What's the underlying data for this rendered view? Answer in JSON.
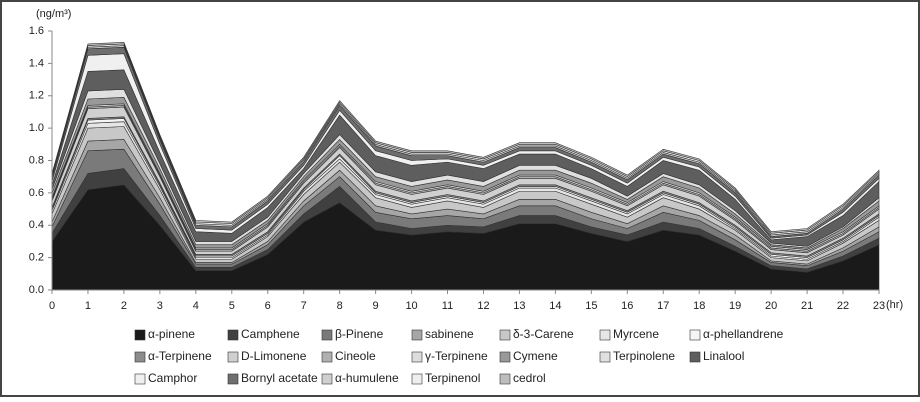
{
  "chart_data": {
    "type": "stacked-area",
    "y_axis_label": "(ng/m³)",
    "x_axis_label": "(hr)",
    "x": [
      0,
      1,
      2,
      3,
      4,
      5,
      6,
      7,
      8,
      9,
      10,
      11,
      12,
      13,
      14,
      15,
      16,
      17,
      18,
      19,
      20,
      21,
      22,
      23
    ],
    "xlim": [
      0,
      23
    ],
    "xticks": [
      0,
      1,
      2,
      3,
      4,
      5,
      6,
      7,
      8,
      9,
      10,
      11,
      12,
      13,
      14,
      15,
      16,
      17,
      18,
      19,
      20,
      21,
      22,
      23
    ],
    "ylim": [
      0,
      1.6
    ],
    "yticks": [
      {
        "value": 0,
        "label": "0.0"
      },
      0.2,
      0.4,
      0.6,
      0.8,
      {
        "value": 1,
        "label": "1.0"
      },
      1.2,
      1.4,
      1.6
    ],
    "series": [
      {
        "name": "α-pinene",
        "color": "#1a1a1a",
        "values": [
          0.3,
          0.62,
          0.65,
          0.4,
          0.12,
          0.12,
          0.22,
          0.42,
          0.54,
          0.37,
          0.34,
          0.36,
          0.35,
          0.41,
          0.41,
          0.35,
          0.3,
          0.37,
          0.34,
          0.24,
          0.13,
          0.11,
          0.18,
          0.28
        ]
      },
      {
        "name": "Camphene",
        "color": "#404040",
        "values": [
          0.05,
          0.1,
          0.1,
          0.06,
          0.02,
          0.02,
          0.03,
          0.05,
          0.1,
          0.05,
          0.04,
          0.04,
          0.04,
          0.05,
          0.05,
          0.04,
          0.04,
          0.05,
          0.04,
          0.03,
          0.02,
          0.02,
          0.03,
          0.04
        ]
      },
      {
        "name": "β-Pinene",
        "color": "#7a7a7a",
        "values": [
          0.04,
          0.14,
          0.12,
          0.07,
          0.02,
          0.02,
          0.03,
          0.05,
          0.06,
          0.06,
          0.06,
          0.06,
          0.05,
          0.06,
          0.06,
          0.05,
          0.04,
          0.06,
          0.05,
          0.04,
          0.02,
          0.02,
          0.03,
          0.04
        ]
      },
      {
        "name": "sabinene",
        "color": "#a6a6a6",
        "values": [
          0.03,
          0.06,
          0.06,
          0.04,
          0.01,
          0.01,
          0.02,
          0.03,
          0.04,
          0.04,
          0.03,
          0.04,
          0.03,
          0.04,
          0.04,
          0.04,
          0.03,
          0.04,
          0.03,
          0.03,
          0.01,
          0.01,
          0.02,
          0.03
        ]
      },
      {
        "name": "δ-3-Carene",
        "color": "#c8c8c8",
        "values": [
          0.05,
          0.08,
          0.08,
          0.05,
          0.02,
          0.02,
          0.03,
          0.04,
          0.05,
          0.05,
          0.04,
          0.05,
          0.04,
          0.05,
          0.05,
          0.05,
          0.04,
          0.05,
          0.04,
          0.03,
          0.02,
          0.02,
          0.03,
          0.04
        ]
      },
      {
        "name": "Myrcene",
        "color": "#e6e6e6",
        "values": [
          0.02,
          0.03,
          0.03,
          0.02,
          0.01,
          0.01,
          0.01,
          0.02,
          0.02,
          0.02,
          0.02,
          0.02,
          0.02,
          0.02,
          0.02,
          0.02,
          0.02,
          0.02,
          0.02,
          0.01,
          0.01,
          0.01,
          0.01,
          0.02
        ]
      },
      {
        "name": "α-phellandrene",
        "color": "#f5f5f5",
        "values": [
          0.01,
          0.02,
          0.02,
          0.01,
          0.01,
          0.01,
          0.01,
          0.01,
          0.02,
          0.01,
          0.01,
          0.01,
          0.01,
          0.01,
          0.01,
          0.01,
          0.01,
          0.01,
          0.01,
          0.01,
          0.01,
          0.01,
          0.01,
          0.01
        ]
      },
      {
        "name": "α-Terpinene",
        "color": "#8c8c8c",
        "values": [
          0.01,
          0.01,
          0.01,
          0.01,
          0.01,
          0.01,
          0.01,
          0.01,
          0.01,
          0.01,
          0.01,
          0.01,
          0.01,
          0.01,
          0.01,
          0.01,
          0.01,
          0.01,
          0.01,
          0.01,
          0.01,
          0.01,
          0.01,
          0.01
        ]
      },
      {
        "name": "D-Limonene",
        "color": "#d0d0d0",
        "values": [
          0.04,
          0.06,
          0.06,
          0.04,
          0.02,
          0.02,
          0.03,
          0.03,
          0.04,
          0.04,
          0.04,
          0.04,
          0.04,
          0.04,
          0.04,
          0.04,
          0.03,
          0.04,
          0.04,
          0.03,
          0.02,
          0.02,
          0.02,
          0.03
        ]
      },
      {
        "name": "Cineole",
        "color": "#b0b0b0",
        "values": [
          0.01,
          0.01,
          0.01,
          0.01,
          0.01,
          0.01,
          0.01,
          0.01,
          0.01,
          0.01,
          0.01,
          0.01,
          0.01,
          0.01,
          0.01,
          0.01,
          0.01,
          0.01,
          0.01,
          0.01,
          0.01,
          0.01,
          0.01,
          0.01
        ]
      },
      {
        "name": "γ-Terpinene",
        "color": "#dcdcdc",
        "values": [
          0.01,
          0.01,
          0.01,
          0.01,
          0.01,
          0.01,
          0.01,
          0.01,
          0.01,
          0.01,
          0.01,
          0.01,
          0.01,
          0.01,
          0.01,
          0.01,
          0.01,
          0.01,
          0.01,
          0.01,
          0.01,
          0.01,
          0.01,
          0.01
        ]
      },
      {
        "name": "Cymene",
        "color": "#999999",
        "values": [
          0.03,
          0.04,
          0.04,
          0.03,
          0.02,
          0.02,
          0.02,
          0.02,
          0.03,
          0.03,
          0.03,
          0.03,
          0.03,
          0.03,
          0.03,
          0.03,
          0.02,
          0.03,
          0.03,
          0.02,
          0.01,
          0.01,
          0.02,
          0.03
        ]
      },
      {
        "name": "Terpinolene",
        "color": "#e0e0e0",
        "values": [
          0.02,
          0.05,
          0.05,
          0.03,
          0.02,
          0.02,
          0.02,
          0.02,
          0.03,
          0.03,
          0.03,
          0.03,
          0.03,
          0.03,
          0.03,
          0.03,
          0.02,
          0.02,
          0.02,
          0.02,
          0.01,
          0.01,
          0.01,
          0.02
        ]
      },
      {
        "name": "Linalool",
        "color": "#5e5e5e",
        "values": [
          0.03,
          0.12,
          0.12,
          0.07,
          0.06,
          0.05,
          0.06,
          0.03,
          0.12,
          0.1,
          0.1,
          0.08,
          0.08,
          0.07,
          0.07,
          0.06,
          0.06,
          0.08,
          0.09,
          0.07,
          0.02,
          0.06,
          0.07,
          0.1
        ]
      },
      {
        "name": "Camphor",
        "color": "#f0f0f0",
        "values": [
          0.02,
          0.1,
          0.1,
          0.05,
          0.02,
          0.02,
          0.02,
          0.02,
          0.03,
          0.03,
          0.03,
          0.02,
          0.02,
          0.02,
          0.02,
          0.02,
          0.02,
          0.02,
          0.02,
          0.02,
          0.01,
          0.01,
          0.02,
          0.02
        ]
      },
      {
        "name": "Bornyl acetate",
        "color": "#6e6e6e",
        "values": [
          0.02,
          0.04,
          0.04,
          0.03,
          0.02,
          0.02,
          0.02,
          0.02,
          0.03,
          0.03,
          0.03,
          0.02,
          0.02,
          0.02,
          0.02,
          0.02,
          0.02,
          0.02,
          0.02,
          0.02,
          0.01,
          0.01,
          0.02,
          0.02
        ]
      },
      {
        "name": "α-humulene",
        "color": "#cfcfcf",
        "values": [
          0.01,
          0.01,
          0.01,
          0.01,
          0.01,
          0.01,
          0.01,
          0.01,
          0.01,
          0.01,
          0.01,
          0.01,
          0.01,
          0.01,
          0.01,
          0.01,
          0.01,
          0.01,
          0.01,
          0.01,
          0.01,
          0.01,
          0.01,
          0.01
        ]
      },
      {
        "name": "Terpinenol",
        "color": "#eeeeee",
        "values": [
          0.01,
          0.01,
          0.01,
          0.01,
          0.01,
          0.01,
          0.01,
          0.01,
          0.01,
          0.01,
          0.01,
          0.01,
          0.01,
          0.01,
          0.01,
          0.01,
          0.01,
          0.01,
          0.01,
          0.01,
          0.01,
          0.01,
          0.01,
          0.01
        ]
      },
      {
        "name": "cedrol",
        "color": "#bdbdbd",
        "values": [
          0.01,
          0.01,
          0.01,
          0.01,
          0.01,
          0.01,
          0.01,
          0.01,
          0.01,
          0.01,
          0.01,
          0.01,
          0.01,
          0.01,
          0.01,
          0.01,
          0.01,
          0.01,
          0.01,
          0.01,
          0.01,
          0.01,
          0.01,
          0.01
        ]
      }
    ]
  }
}
